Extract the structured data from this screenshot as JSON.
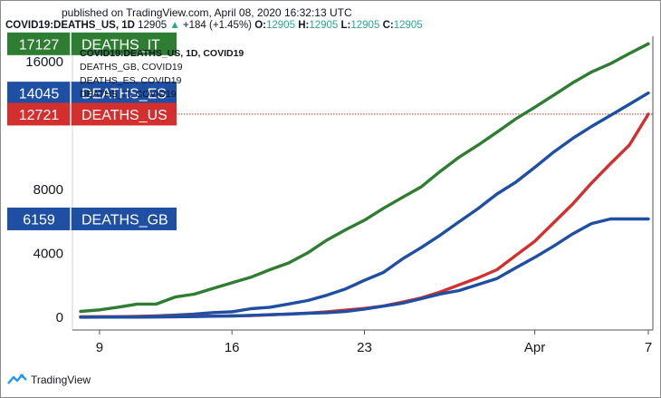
{
  "header": {
    "published": "published on TradingView.com, April 08, 2020 16:32:13 UTC",
    "symbol": "COVID19:DEATHS_US, 1D",
    "last": "12905",
    "change_arrow": "▲",
    "change": "+184 (+1.45%)",
    "o_label": "O:",
    "o_value": "12905",
    "h_label": "H:",
    "h_value": "12905",
    "l_label": "L:",
    "l_value": "12905",
    "c_label": "C:",
    "c_value": "12905"
  },
  "brand": {
    "name": "TradingView",
    "icon": "tradingview-logo-icon"
  },
  "chart_data": {
    "type": "line",
    "x_ticks": [
      "9",
      "16",
      "23",
      "Apr",
      "7"
    ],
    "y_ticks": [
      0,
      4000,
      8000,
      16000
    ],
    "ylim": [
      -800,
      17600
    ],
    "price_line": 12721,
    "legend_overlay": [
      "COVID19:DEATHS_US, 1D, COVID19",
      "DEATHS_GB, COVID19",
      "DEATHS_ES, COVID19",
      "DEATHS_IT, COVID19"
    ],
    "x": [
      "2020-03-08",
      "2020-03-09",
      "2020-03-10",
      "2020-03-11",
      "2020-03-12",
      "2020-03-13",
      "2020-03-14",
      "2020-03-15",
      "2020-03-16",
      "2020-03-17",
      "2020-03-18",
      "2020-03-19",
      "2020-03-20",
      "2020-03-21",
      "2020-03-22",
      "2020-03-23",
      "2020-03-24",
      "2020-03-25",
      "2020-03-26",
      "2020-03-27",
      "2020-03-28",
      "2020-03-29",
      "2020-03-30",
      "2020-03-31",
      "2020-04-01",
      "2020-04-02",
      "2020-04-03",
      "2020-04-04",
      "2020-04-05",
      "2020-04-06",
      "2020-04-07"
    ],
    "series": [
      {
        "name": "DEATHS_IT",
        "label": "DEATHS_IT",
        "last": "17127",
        "color": "#2e7d32",
        "values": [
          366,
          463,
          631,
          827,
          827,
          1266,
          1441,
          1809,
          2158,
          2503,
          2978,
          3405,
          4032,
          4825,
          5476,
          6077,
          6820,
          7503,
          8165,
          9134,
          10023,
          10779,
          11591,
          12428,
          13155,
          13915,
          14681,
          15362,
          15887,
          16523,
          17127
        ]
      },
      {
        "name": "DEATHS_ES",
        "label": "DEATHS_ES",
        "last": "14045",
        "color": "#1e4fa3",
        "values": [
          17,
          28,
          35,
          54,
          84,
          133,
          195,
          289,
          342,
          533,
          623,
          830,
          1043,
          1375,
          1772,
          2311,
          2808,
          3647,
          4365,
          5138,
          5982,
          6803,
          7716,
          8464,
          9387,
          10348,
          11198,
          11947,
          12641,
          13341,
          14045
        ]
      },
      {
        "name": "DEATHS_US",
        "label": "DEATHS_US",
        "last": "12721",
        "color": "#d32f2f",
        "values": [
          21,
          26,
          30,
          38,
          41,
          48,
          57,
          68,
          86,
          108,
          150,
          206,
          259,
          343,
          441,
          553,
          706,
          942,
          1209,
          1581,
          2026,
          2467,
          2978,
          3873,
          4757,
          5926,
          7087,
          8407,
          9619,
          10783,
          12721
        ]
      },
      {
        "name": "DEATHS_GB",
        "label": "DEATHS_GB",
        "last": "6159",
        "color": "#1e4fa3",
        "values": [
          3,
          5,
          7,
          9,
          10,
          28,
          43,
          65,
          81,
          115,
          158,
          194,
          250,
          285,
          359,
          508,
          694,
          877,
          1161,
          1455,
          1669,
          2043,
          2425,
          3095,
          3747,
          4461,
          5221,
          5865,
          6159,
          6159,
          6159
        ]
      }
    ]
  }
}
